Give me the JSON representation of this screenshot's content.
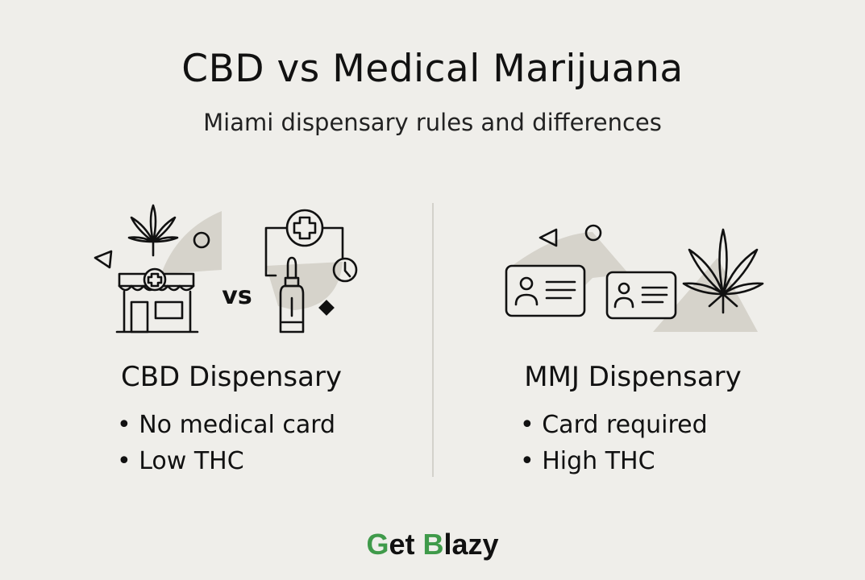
{
  "header": {
    "title": "CBD vs Medical Marijuana",
    "subtitle": "Miami dispensary rules and differences"
  },
  "left": {
    "vs_label": "vs",
    "heading": "CBD Dispensary",
    "bullets": [
      "No medical card",
      "Low THC"
    ]
  },
  "right": {
    "heading": "MMJ Dispensary",
    "bullets": [
      "Card required",
      "High THC"
    ]
  },
  "logo": {
    "text": "Get Blazy",
    "parts": [
      "G",
      "et ",
      "B",
      "lazy"
    ],
    "accent_color": "#3f9a4a"
  },
  "colors": {
    "background": "#efeeea",
    "shape": "#d6d3cb"
  }
}
